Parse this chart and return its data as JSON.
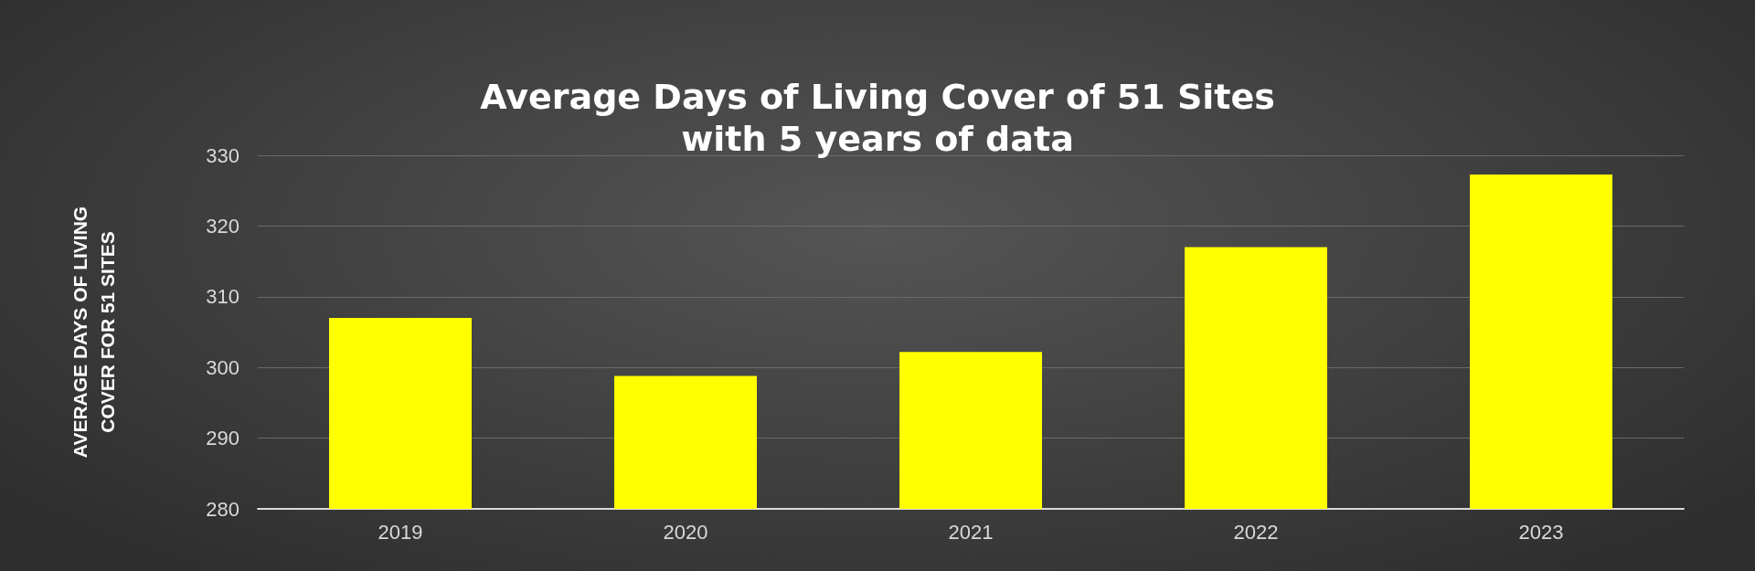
{
  "chart_data": {
    "type": "bar",
    "title": "Average Days of Living Cover of 51 Sites\nwith 5 years of data",
    "ylabel": "AVERAGE DAYS OF LIVING\nCOVER FOR 51 SITES",
    "categories": [
      "2019",
      "2020",
      "2021",
      "2022",
      "2023"
    ],
    "values": [
      307,
      298.8,
      302.2,
      317,
      327.3
    ],
    "color": "#ffff00",
    "ylim": [
      280,
      330
    ],
    "yticks": [
      280,
      290,
      300,
      310,
      320,
      330
    ],
    "grid": "y"
  }
}
